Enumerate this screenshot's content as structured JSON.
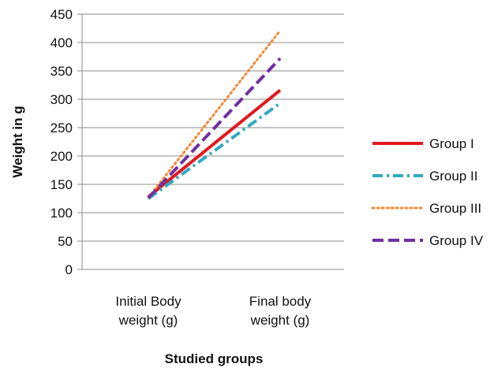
{
  "chart_data": {
    "type": "line",
    "title": "",
    "xlabel": "Studied groups",
    "ylabel": "Weight in g",
    "categories": [
      [
        "Initial Body",
        "weight (g)"
      ],
      [
        "Final body",
        "weight (g)"
      ]
    ],
    "ylim": [
      0,
      450
    ],
    "yticks": [
      0,
      50,
      100,
      150,
      200,
      250,
      300,
      350,
      400,
      450
    ],
    "grid": "horizontal",
    "legend_position": "right",
    "series": [
      {
        "name": "Group I",
        "values": [
          128,
          316
        ],
        "color": "#e0191f",
        "style": "solid"
      },
      {
        "name": "Group II",
        "values": [
          125,
          293
        ],
        "color": "#31a9c0",
        "style": "dash-dot"
      },
      {
        "name": "Group III",
        "values": [
          127,
          421
        ],
        "color": "#f08a37",
        "style": "dotted"
      },
      {
        "name": "Group IV",
        "values": [
          126,
          372
        ],
        "color": "#7030a0",
        "style": "dashed"
      }
    ]
  }
}
